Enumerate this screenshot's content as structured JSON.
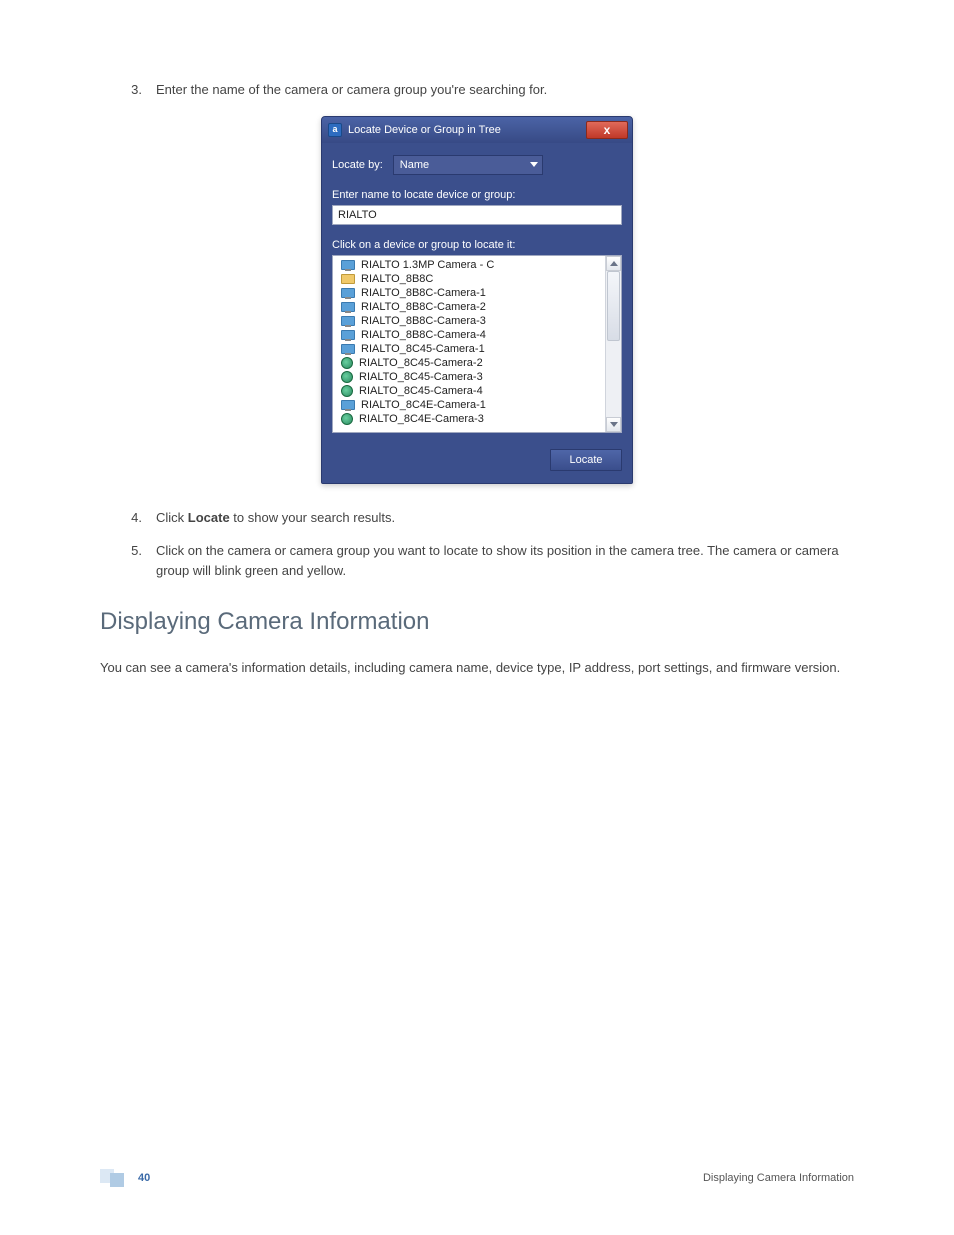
{
  "steps": {
    "s3": {
      "num": "3.",
      "text": "Enter the name of the camera or camera group you're searching for."
    },
    "s4": {
      "num": "4.",
      "prefix": "Click ",
      "bold": "Locate",
      "suffix": " to show your search results."
    },
    "s5": {
      "num": "5.",
      "text": "Click on the camera or camera group you want to locate to show its position in the camera tree. The camera or camera group will blink green and yellow."
    }
  },
  "dialog": {
    "appglyph": "a",
    "title": "Locate Device or Group in Tree",
    "close": "x",
    "locate_by_label": "Locate by:",
    "locate_by_value": "Name",
    "enter_prompt": "Enter name to locate device or group:",
    "search_value": "RIALTO",
    "result_prompt": "Click on a device or group to locate it:",
    "results": [
      {
        "icon": "mon",
        "label": "RIALTO 1.3MP Camera - C"
      },
      {
        "icon": "fold",
        "label": "RIALTO_8B8C"
      },
      {
        "icon": "mon",
        "label": "RIALTO_8B8C-Camera-1"
      },
      {
        "icon": "mon",
        "label": "RIALTO_8B8C-Camera-2"
      },
      {
        "icon": "mon",
        "label": "RIALTO_8B8C-Camera-3"
      },
      {
        "icon": "mon",
        "label": "RIALTO_8B8C-Camera-4"
      },
      {
        "icon": "mon",
        "label": "RIALTO_8C45-Camera-1"
      },
      {
        "icon": "cam",
        "label": "RIALTO_8C45-Camera-2"
      },
      {
        "icon": "cam",
        "label": "RIALTO_8C45-Camera-3"
      },
      {
        "icon": "cam",
        "label": "RIALTO_8C45-Camera-4"
      },
      {
        "icon": "mon",
        "label": "RIALTO_8C4E-Camera-1"
      },
      {
        "icon": "cam",
        "label": "RIALTO_8C4E-Camera-3"
      }
    ],
    "locate_btn": "Locate"
  },
  "section": {
    "heading": "Displaying Camera Information",
    "body": "You can see a camera's information details, including camera name, device type, IP address, port settings, and firmware version."
  },
  "footer": {
    "page": "40",
    "right": "Displaying Camera Information"
  }
}
